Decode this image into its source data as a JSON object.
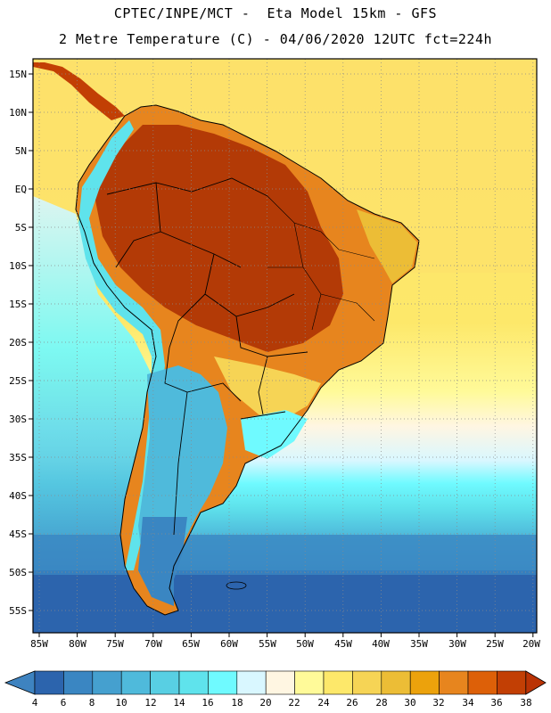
{
  "title_line1": "CPTEC/INPE/MCT -  Eta Model 15km - GFS",
  "title_line2": "2 Metre Temperature (C) - 04/06/2020 12UTC fct=224h",
  "lat_labels": [
    "15N",
    "10N",
    "5N",
    "EQ",
    "5S",
    "10S",
    "15S",
    "20S",
    "25S",
    "30S",
    "35S",
    "40S",
    "45S",
    "50S",
    "55S"
  ],
  "lon_labels": [
    "85W",
    "80W",
    "75W",
    "70W",
    "65W",
    "60W",
    "55W",
    "50W",
    "45W",
    "40W",
    "35W",
    "30W",
    "25W",
    "20W"
  ],
  "colorbar": {
    "labels": [
      "4",
      "6",
      "8",
      "10",
      "12",
      "14",
      "16",
      "18",
      "20",
      "22",
      "24",
      "26",
      "28",
      "30",
      "32",
      "34",
      "36",
      "38"
    ],
    "colors": [
      "#2c64ad",
      "#3a86c2",
      "#45a0cf",
      "#4fbadb",
      "#58cfe3",
      "#5fe3ec",
      "#6ffaff",
      "#d9f7ff",
      "#fff6e2",
      "#fffa99",
      "#fde86a",
      "#f6d455",
      "#ecbd36",
      "#eca20c",
      "#e7851e",
      "#dd6008",
      "#c23f04"
    ],
    "under_color": "#3e83c0",
    "over_color": "#ba3304"
  },
  "map": {
    "ocean_north_color": "#fde16a",
    "ocean_mid_color": "#fff6e2",
    "ocean_south_cool_color": "#58cfe3",
    "ocean_far_south_color": "#2c64ad",
    "interior_hot_color": "#b33a06",
    "land_warm_color": "#e7851e",
    "andes_cold_color": "#5fe3ec",
    "patagonia_color": "#3a86c2"
  }
}
